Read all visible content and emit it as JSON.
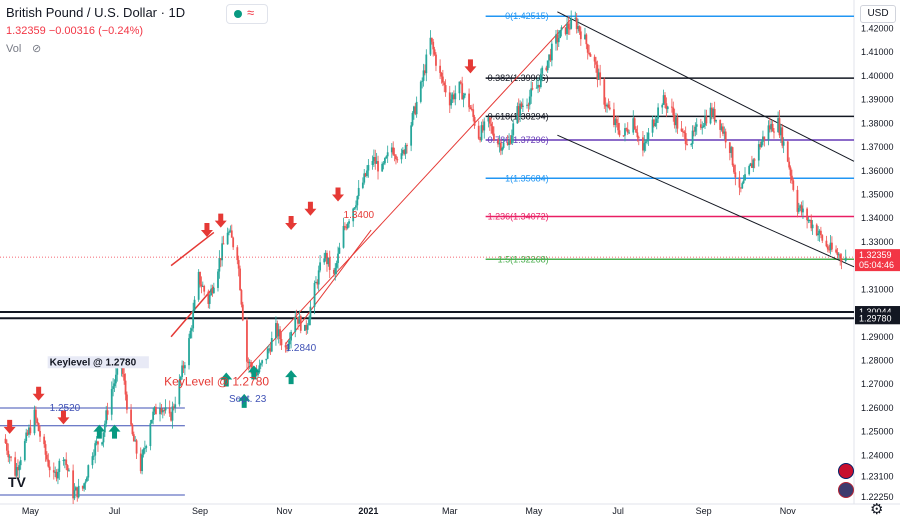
{
  "header": {
    "symbol": "British Pound / U.S. Dollar · 1D",
    "close": "1.32359",
    "change": "−0.00316 (−0.24%)",
    "vol_label": "Vol",
    "currency": "USD"
  },
  "colors": {
    "up": "#26a69a",
    "down": "#ef5350",
    "arrow_up": "#089981",
    "arrow_down": "#e53935",
    "trend_red": "#e53935",
    "channel_black": "#131722",
    "fib_0": "#2196f3",
    "fib_0382": "#131722",
    "fib_0618": "#131722",
    "fib_0786": "#673ab7",
    "fib_1": "#2196f3",
    "fib_1236": "#e91e63",
    "fib_15": "#4caf50",
    "level_blue": "#3f51b5",
    "price_tag": "#f23645"
  },
  "chart_data": {
    "type": "line",
    "title": "British Pound / U.S. Dollar · 1D",
    "ylabel": "USD",
    "ylim": [
      1.2195,
      1.432
    ],
    "y_ticks": [
      1.2225,
      1.231,
      1.24,
      1.25,
      1.26,
      1.27,
      1.28,
      1.29,
      1.31,
      1.32,
      1.33,
      1.34,
      1.35,
      1.36,
      1.37,
      1.38,
      1.39,
      1.4,
      1.41,
      1.42
    ],
    "y_tick_labels": [
      "1.22250",
      "1.23100",
      "1.24000",
      "1.25000",
      "1.26000",
      "1.27000",
      "1.28000",
      "1.29000",
      "1.31000",
      "1.32000",
      "1.33000",
      "1.34000",
      "1.35000",
      "1.36000",
      "1.37000",
      "1.38000",
      "1.39000",
      "1.40000",
      "1.41000",
      "1.42000"
    ],
    "x_ticks": [
      "2020-05-01",
      "2020-07-01",
      "2020-09-01",
      "2020-11-01",
      "2021-01-01",
      "2021-03-01",
      "2021-05-01",
      "2021-07-01",
      "2021-09-01",
      "2021-11-01"
    ],
    "x_tick_labels": [
      "May",
      "Jul",
      "Sep",
      "Nov",
      "2021",
      "Mar",
      "May",
      "Jul",
      "Sep",
      "Nov"
    ],
    "xlim": [
      "2020-04-09",
      "2021-12-19"
    ],
    "series": [
      {
        "values": [
          [
            "2020-04-12",
            1.247
          ],
          [
            "2020-04-20",
            1.233
          ],
          [
            "2020-04-27",
            1.245
          ],
          [
            "2020-05-04",
            1.257
          ],
          [
            "2020-05-11",
            1.242
          ],
          [
            "2020-05-18",
            1.23
          ],
          [
            "2020-05-25",
            1.241
          ],
          [
            "2020-06-01",
            1.224
          ],
          [
            "2020-06-08",
            1.226
          ],
          [
            "2020-06-15",
            1.242
          ],
          [
            "2020-06-22",
            1.248
          ],
          [
            "2020-06-29",
            1.268
          ],
          [
            "2020-07-06",
            1.278
          ],
          [
            "2020-07-13",
            1.25
          ],
          [
            "2020-07-20",
            1.235
          ],
          [
            "2020-07-27",
            1.255
          ],
          [
            "2020-08-03",
            1.262
          ],
          [
            "2020-08-10",
            1.255
          ],
          [
            "2020-08-17",
            1.27
          ],
          [
            "2020-08-24",
            1.288
          ],
          [
            "2020-08-31",
            1.315
          ],
          [
            "2020-09-07",
            1.305
          ],
          [
            "2020-09-14",
            1.32
          ],
          [
            "2020-09-21",
            1.335
          ],
          [
            "2020-09-28",
            1.325
          ],
          [
            "2020-10-05",
            1.28
          ],
          [
            "2020-10-12",
            1.274
          ],
          [
            "2020-10-19",
            1.282
          ],
          [
            "2020-10-26",
            1.293
          ],
          [
            "2020-11-02",
            1.285
          ],
          [
            "2020-11-09",
            1.3
          ],
          [
            "2020-11-16",
            1.292
          ],
          [
            "2020-11-23",
            1.31
          ],
          [
            "2020-11-30",
            1.325
          ],
          [
            "2020-12-07",
            1.315
          ],
          [
            "2020-12-14",
            1.335
          ],
          [
            "2020-12-21",
            1.345
          ],
          [
            "2020-12-28",
            1.355
          ],
          [
            "2021-01-04",
            1.365
          ],
          [
            "2021-01-11",
            1.36
          ],
          [
            "2021-01-18",
            1.37
          ],
          [
            "2021-01-25",
            1.365
          ],
          [
            "2021-02-01",
            1.38
          ],
          [
            "2021-02-08",
            1.395
          ],
          [
            "2021-02-15",
            1.415
          ],
          [
            "2021-02-22",
            1.4
          ],
          [
            "2021-03-01",
            1.39
          ],
          [
            "2021-03-08",
            1.395
          ],
          [
            "2021-03-15",
            1.388
          ],
          [
            "2021-03-22",
            1.375
          ],
          [
            "2021-03-29",
            1.38
          ],
          [
            "2021-04-05",
            1.372
          ],
          [
            "2021-04-12",
            1.37
          ],
          [
            "2021-04-19",
            1.385
          ],
          [
            "2021-04-26",
            1.39
          ],
          [
            "2021-05-03",
            1.395
          ],
          [
            "2021-05-10",
            1.405
          ],
          [
            "2021-05-17",
            1.415
          ],
          [
            "2021-05-24",
            1.42
          ],
          [
            "2021-05-31",
            1.423
          ],
          [
            "2021-06-07",
            1.415
          ],
          [
            "2021-06-14",
            1.405
          ],
          [
            "2021-06-21",
            1.39
          ],
          [
            "2021-06-28",
            1.38
          ],
          [
            "2021-07-05",
            1.375
          ],
          [
            "2021-07-12",
            1.382
          ],
          [
            "2021-07-19",
            1.368
          ],
          [
            "2021-07-26",
            1.38
          ],
          [
            "2021-08-02",
            1.39
          ],
          [
            "2021-08-09",
            1.385
          ],
          [
            "2021-08-16",
            1.375
          ],
          [
            "2021-08-23",
            1.373
          ],
          [
            "2021-08-30",
            1.38
          ],
          [
            "2021-09-06",
            1.385
          ],
          [
            "2021-09-13",
            1.38
          ],
          [
            "2021-09-20",
            1.37
          ],
          [
            "2021-09-27",
            1.35
          ],
          [
            "2021-10-04",
            1.36
          ],
          [
            "2021-10-11",
            1.37
          ],
          [
            "2021-10-18",
            1.378
          ],
          [
            "2021-10-25",
            1.38
          ],
          [
            "2021-11-01",
            1.365
          ],
          [
            "2021-11-08",
            1.345
          ],
          [
            "2021-11-15",
            1.34
          ],
          [
            "2021-11-22",
            1.335
          ],
          [
            "2021-11-29",
            1.328
          ],
          [
            "2021-12-06",
            1.325
          ],
          [
            "2021-12-13",
            1.3236
          ]
        ]
      }
    ],
    "fibonacci": [
      {
        "label": "0(1.42515)",
        "price": 1.42515,
        "key": "fib_0"
      },
      {
        "label": "0.382(1.39906)",
        "price": 1.39906,
        "key": "fib_0382"
      },
      {
        "label": "0.618(1.38294)",
        "price": 1.38294,
        "key": "fib_0618"
      },
      {
        "label": "0.786(1.37296)",
        "price": 1.37296,
        "key": "fib_0786"
      },
      {
        "label": "1(1.35684)",
        "price": 1.35684,
        "key": "fib_1"
      },
      {
        "label": "1.236(1.34072)",
        "price": 1.34072,
        "key": "fib_1236"
      },
      {
        "label": "1.5(1.32268)",
        "price": 1.32268,
        "key": "fib_15"
      }
    ],
    "horizontal_levels": [
      {
        "price": 1.30044,
        "label": "1.30044"
      },
      {
        "price": 1.2978,
        "label": "1.29780"
      },
      {
        "price": 1.26,
        "label": ""
      },
      {
        "price": 1.2525,
        "label": ""
      },
      {
        "price": 1.2233,
        "label": ""
      }
    ],
    "current_price_tag": {
      "price": 1.32359,
      "label": "1.32359",
      "countdown": "05:04:46"
    },
    "annotations": [
      {
        "text": "Keylevel @ 1.2780",
        "date": "2020-05-15",
        "price": 1.278,
        "color": "#131722",
        "bg": "#e8eaf6"
      },
      {
        "text": "1.2520",
        "date": "2020-05-15",
        "price": 1.2587,
        "color": "#3f51b5"
      },
      {
        "text": "KeyLevel @ 1.2780",
        "date": "2020-08-06",
        "price": 1.2695,
        "color": "#e53935"
      },
      {
        "text": "Sept. 23",
        "date": "2020-09-22",
        "price": 1.2625,
        "color": "#3f51b5"
      },
      {
        "text": "1.2840",
        "date": "2020-11-02",
        "price": 1.284,
        "color": "#3f51b5"
      },
      {
        "text": "1.3400",
        "date": "2020-12-14",
        "price": 1.34,
        "color": "#e53935"
      }
    ],
    "arrows_down": [
      [
        "2020-04-16",
        1.252
      ],
      [
        "2020-05-07",
        1.266
      ],
      [
        "2020-05-25",
        1.256
      ],
      [
        "2020-09-06",
        1.335
      ],
      [
        "2020-09-16",
        1.339
      ],
      [
        "2020-11-06",
        1.338
      ],
      [
        "2020-11-20",
        1.344
      ],
      [
        "2020-12-10",
        1.35
      ],
      [
        "2021-03-16",
        1.404
      ]
    ],
    "arrows_up": [
      [
        "2020-06-20",
        1.25
      ],
      [
        "2020-07-01",
        1.25
      ],
      [
        "2020-09-20",
        1.272
      ],
      [
        "2020-10-03",
        1.263
      ],
      [
        "2020-10-10",
        1.275
      ],
      [
        "2020-11-06",
        1.273
      ]
    ],
    "grid": false,
    "legend": "none"
  }
}
